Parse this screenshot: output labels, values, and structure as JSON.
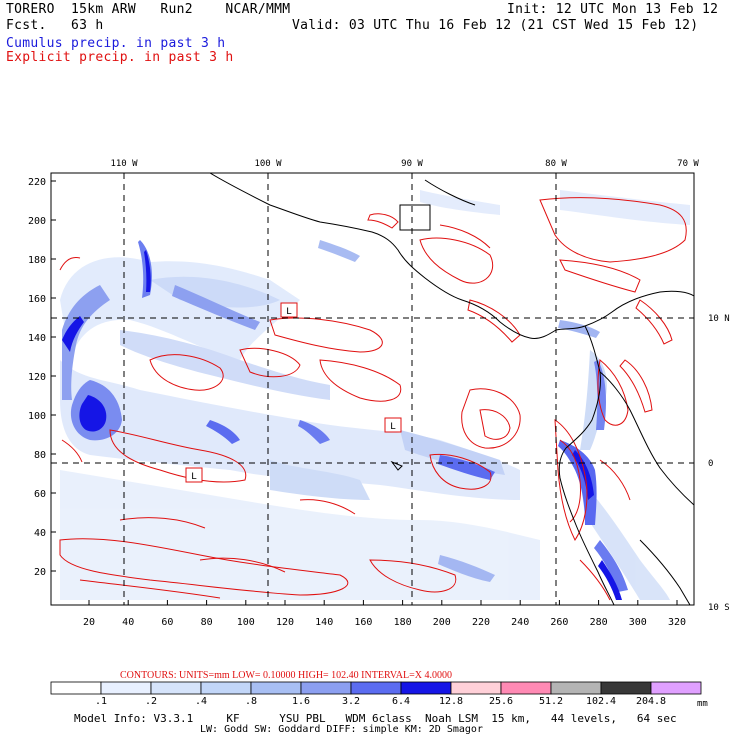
{
  "header": {
    "model": "TORERO  15km ARW   Run2    NCAR/MMM",
    "init": "Init: 12 UTC Mon 13 Feb 12",
    "fcst": "Fcst.   63 h",
    "valid": "Valid: 03 UTC Thu 16 Feb 12 (21 CST Wed 15 Feb 12)",
    "cumulus": "Cumulus precip. in past 3 h",
    "explicit": "Explicit precip. in past 3 h"
  },
  "map": {
    "top_lon_labels": [
      "110 W",
      "100 W",
      "90 W",
      "80 W",
      "70 W"
    ],
    "right_lat_labels": [
      "10 N",
      "0",
      "10 S"
    ],
    "y_ticks": [
      "220",
      "200",
      "180",
      "160",
      "140",
      "120",
      "100",
      "80",
      "60",
      "40",
      "20"
    ],
    "x_ticks": [
      "20",
      "40",
      "60",
      "80",
      "100",
      "120",
      "140",
      "160",
      "180",
      "200",
      "220",
      "240",
      "260",
      "280",
      "300",
      "320"
    ],
    "low_markers": [
      "L",
      "L",
      "L"
    ],
    "colors": {
      "frame": "#000000",
      "grid": "#000000",
      "contour": "#e01010",
      "coast": "#000000"
    }
  },
  "legend": {
    "contours_line": "CONTOURS:  UNITS=mm  LOW= 0.10000      HIGH=  102.40      INTERVAL=X  4.0000",
    "units": "mm",
    "labels": [
      ".1",
      ".2",
      ".4",
      ".8",
      "1.6",
      "3.2",
      "6.4",
      "12.8",
      "25.6",
      "51.2",
      "102.4",
      "204.8"
    ],
    "colors": [
      "#ffffff",
      "#e8f0ff",
      "#d6e4fb",
      "#c2d6f8",
      "#a8bff3",
      "#8c9ff0",
      "#5b6cf0",
      "#1515e6",
      "#ffd0d8",
      "#ff8ab4",
      "#b4b4b4",
      "#383838",
      "#e0a0ff"
    ]
  },
  "model_info": {
    "line1": "Model Info: V3.3.1     KF      YSU PBL   WDM 6class  Noah LSM  15 km,   44 levels,   64 sec",
    "line2": "LW: Godd SW: Goddard DIFF: simple KM: 2D Smagor"
  }
}
